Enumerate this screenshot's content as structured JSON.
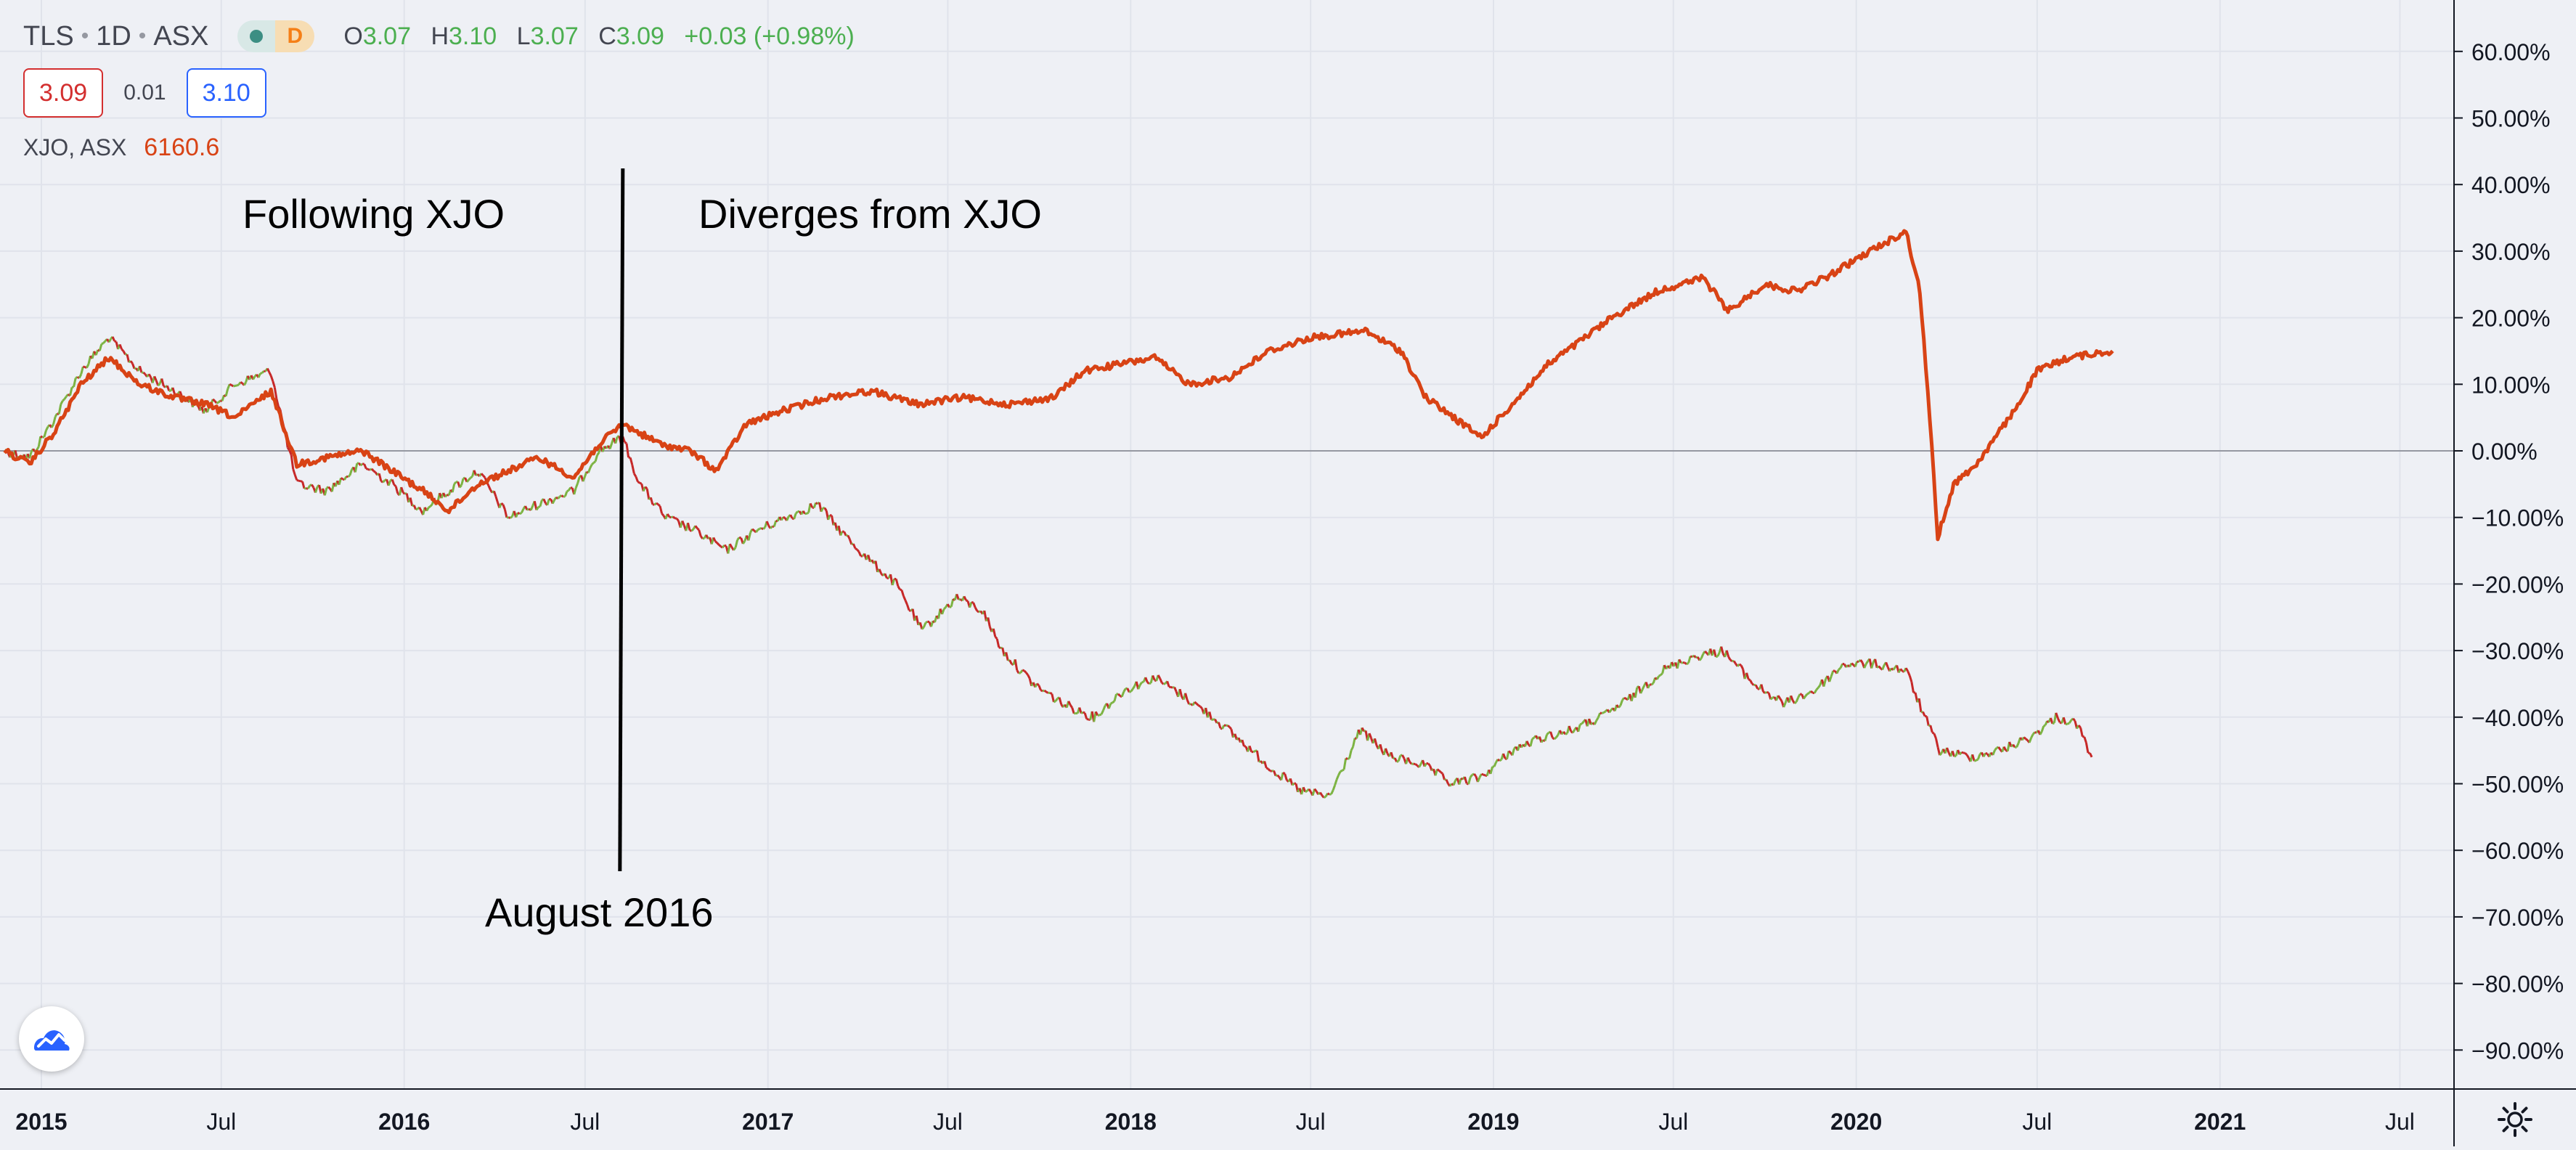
{
  "header": {
    "symbol": "TLS",
    "interval": "1D",
    "exchange": "ASX",
    "status_letter": "D",
    "ohlc": {
      "o_label": "O",
      "o": "3.07",
      "h_label": "H",
      "h": "3.10",
      "l_label": "L",
      "l": "3.07",
      "c_label": "C",
      "c": "3.09",
      "change": "+0.03 (+0.98%)"
    },
    "bid": "3.09",
    "spread": "0.01",
    "ask": "3.10",
    "compare_symbol": "XJO, ASX",
    "compare_value": "6160.6"
  },
  "annotations": {
    "left_label": "Following XJO",
    "right_label": "Diverges from XJO",
    "marker_label": "August 2016"
  },
  "chart_data": {
    "type": "line",
    "x_ticks": [
      "2015",
      "Jul",
      "2016",
      "Jul",
      "2017",
      "Jul",
      "2018",
      "Jul",
      "2019",
      "Jul",
      "2020",
      "Jul",
      "2021",
      "Jul"
    ],
    "y_ticks": [
      "60.00%",
      "50.00%",
      "40.00%",
      "30.00%",
      "20.00%",
      "10.00%",
      "0.00%",
      "−10.00%",
      "−20.00%",
      "−30.00%",
      "−40.00%",
      "−50.00%",
      "−60.00%",
      "−70.00%",
      "−80.00%",
      "−90.00%"
    ],
    "y_unit": "%",
    "ylim": [
      -95,
      65
    ],
    "xlim": [
      "2014-11-25",
      "2021-09-20"
    ],
    "marker_date": "2016-08-08",
    "series": [
      {
        "name": "XJO, ASX",
        "color": "#d84315",
        "points": [
          [
            "2014-11-25",
            0
          ],
          [
            "2014-12-20",
            -2
          ],
          [
            "2015-01-15",
            3
          ],
          [
            "2015-02-10",
            10
          ],
          [
            "2015-03-10",
            14
          ],
          [
            "2015-04-10",
            10
          ],
          [
            "2015-05-15",
            8
          ],
          [
            "2015-06-15",
            7
          ],
          [
            "2015-07-15",
            5
          ],
          [
            "2015-08-20",
            9
          ],
          [
            "2015-09-15",
            -2
          ],
          [
            "2015-10-15",
            -1
          ],
          [
            "2015-11-20",
            0
          ],
          [
            "2015-12-20",
            -3
          ],
          [
            "2016-01-20",
            -6
          ],
          [
            "2016-02-15",
            -9
          ],
          [
            "2016-03-15",
            -5
          ],
          [
            "2016-04-15",
            -3
          ],
          [
            "2016-05-15",
            -1
          ],
          [
            "2016-06-20",
            -4
          ],
          [
            "2016-07-15",
            1
          ],
          [
            "2016-08-08",
            4
          ],
          [
            "2016-09-15",
            1
          ],
          [
            "2016-10-15",
            0
          ],
          [
            "2016-11-10",
            -3
          ],
          [
            "2016-12-10",
            4
          ],
          [
            "2017-01-15",
            6
          ],
          [
            "2017-03-01",
            8
          ],
          [
            "2017-04-15",
            9
          ],
          [
            "2017-06-01",
            7
          ],
          [
            "2017-07-15",
            8
          ],
          [
            "2017-09-01",
            7
          ],
          [
            "2017-10-15",
            8
          ],
          [
            "2017-11-15",
            12
          ],
          [
            "2017-12-20",
            13
          ],
          [
            "2018-01-25",
            14
          ],
          [
            "2018-03-01",
            10
          ],
          [
            "2018-04-10",
            11
          ],
          [
            "2018-05-20",
            15
          ],
          [
            "2018-07-01",
            17
          ],
          [
            "2018-08-25",
            18
          ],
          [
            "2018-09-30",
            15
          ],
          [
            "2018-10-25",
            8
          ],
          [
            "2018-12-20",
            2
          ],
          [
            "2019-01-20",
            7
          ],
          [
            "2019-02-25",
            13
          ],
          [
            "2019-03-25",
            16
          ],
          [
            "2019-04-30",
            20
          ],
          [
            "2019-06-15",
            24
          ],
          [
            "2019-07-31",
            26
          ],
          [
            "2019-08-25",
            21
          ],
          [
            "2019-10-01",
            25
          ],
          [
            "2019-11-01",
            24
          ],
          [
            "2019-12-01",
            26
          ],
          [
            "2020-01-15",
            30
          ],
          [
            "2020-02-20",
            33
          ],
          [
            "2020-03-05",
            24
          ],
          [
            "2020-03-15",
            5
          ],
          [
            "2020-03-23",
            -13
          ],
          [
            "2020-04-08",
            -5
          ],
          [
            "2020-05-01",
            -2
          ],
          [
            "2020-06-08",
            6
          ],
          [
            "2020-07-01",
            12
          ],
          [
            "2020-08-01",
            14
          ],
          [
            "2020-09-15",
            15
          ]
        ]
      },
      {
        "name": "TLS",
        "color": "#c62828",
        "up_color": "#7cb342",
        "points": [
          [
            "2014-11-25",
            0
          ],
          [
            "2014-12-20",
            -1
          ],
          [
            "2015-01-15",
            5
          ],
          [
            "2015-02-10",
            12
          ],
          [
            "2015-03-10",
            17
          ],
          [
            "2015-04-10",
            12
          ],
          [
            "2015-05-15",
            9
          ],
          [
            "2015-06-15",
            6
          ],
          [
            "2015-07-15",
            10
          ],
          [
            "2015-08-20",
            12
          ],
          [
            "2015-09-15",
            -5
          ],
          [
            "2015-10-15",
            -6
          ],
          [
            "2015-11-20",
            -2
          ],
          [
            "2015-12-20",
            -5
          ],
          [
            "2016-01-20",
            -9
          ],
          [
            "2016-02-15",
            -6
          ],
          [
            "2016-03-15",
            -3
          ],
          [
            "2016-04-15",
            -10
          ],
          [
            "2016-05-15",
            -8
          ],
          [
            "2016-06-20",
            -6
          ],
          [
            "2016-07-15",
            0
          ],
          [
            "2016-08-08",
            2
          ],
          [
            "2016-08-25",
            -5
          ],
          [
            "2016-09-20",
            -10
          ],
          [
            "2016-10-20",
            -12
          ],
          [
            "2016-11-20",
            -15
          ],
          [
            "2016-12-20",
            -12
          ],
          [
            "2017-01-20",
            -10
          ],
          [
            "2017-02-20",
            -8
          ],
          [
            "2017-03-15",
            -12
          ],
          [
            "2017-04-10",
            -16
          ],
          [
            "2017-05-10",
            -20
          ],
          [
            "2017-06-05",
            -27
          ],
          [
            "2017-07-10",
            -22
          ],
          [
            "2017-08-05",
            -24
          ],
          [
            "2017-08-25",
            -30
          ],
          [
            "2017-09-25",
            -35
          ],
          [
            "2017-10-25",
            -38
          ],
          [
            "2017-11-25",
            -40
          ],
          [
            "2017-12-25",
            -36
          ],
          [
            "2018-01-25",
            -34
          ],
          [
            "2018-02-25",
            -37
          ],
          [
            "2018-03-25",
            -40
          ],
          [
            "2018-04-25",
            -44
          ],
          [
            "2018-05-25",
            -48
          ],
          [
            "2018-06-20",
            -51
          ],
          [
            "2018-07-20",
            -52
          ],
          [
            "2018-08-20",
            -42
          ],
          [
            "2018-09-20",
            -46
          ],
          [
            "2018-10-20",
            -47
          ],
          [
            "2018-11-20",
            -50
          ],
          [
            "2018-12-20",
            -49
          ],
          [
            "2019-01-20",
            -45
          ],
          [
            "2019-02-20",
            -43
          ],
          [
            "2019-03-20",
            -42
          ],
          [
            "2019-04-20",
            -40
          ],
          [
            "2019-05-20",
            -37
          ],
          [
            "2019-06-20",
            -33
          ],
          [
            "2019-07-20",
            -31
          ],
          [
            "2019-08-20",
            -30
          ],
          [
            "2019-09-20",
            -35
          ],
          [
            "2019-10-20",
            -38
          ],
          [
            "2019-11-20",
            -36
          ],
          [
            "2019-12-20",
            -32
          ],
          [
            "2020-01-20",
            -32
          ],
          [
            "2020-02-20",
            -33
          ],
          [
            "2020-03-10",
            -40
          ],
          [
            "2020-03-25",
            -45
          ],
          [
            "2020-04-25",
            -46
          ],
          [
            "2020-05-25",
            -45
          ],
          [
            "2020-06-25",
            -43
          ],
          [
            "2020-07-20",
            -40
          ],
          [
            "2020-08-10",
            -41
          ],
          [
            "2020-08-25",
            -46
          ]
        ]
      }
    ],
    "grid": true,
    "zero_line": true
  },
  "colors": {
    "background": "#eef0f5",
    "grid": "#e0e3eb",
    "text": "#434651",
    "annotation": "#000000"
  },
  "icons": {
    "logo": "tradingview-logo-icon",
    "settings": "gear-icon"
  }
}
